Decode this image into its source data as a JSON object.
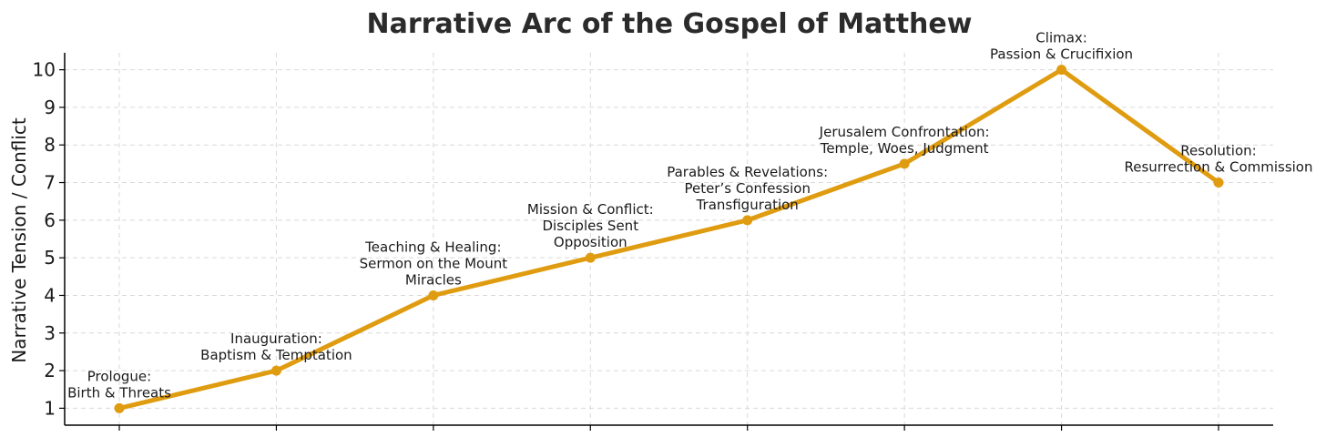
{
  "chart_data": {
    "type": "line",
    "title": "Narrative Arc of the Gospel of Matthew",
    "xlabel": "",
    "ylabel": "Narrative Tension / Conflict",
    "ylim": [
      0.55,
      10.45
    ],
    "yticks": [
      1,
      2,
      3,
      4,
      5,
      6,
      7,
      8,
      9,
      10
    ],
    "grid": true,
    "x": [
      1,
      2,
      3,
      4,
      5,
      6,
      7,
      8
    ],
    "series": [
      {
        "values": [
          1,
          2,
          4,
          5,
          6,
          7.5,
          10,
          7
        ],
        "color": "#e09c10"
      }
    ],
    "annotations": [
      [
        "Prologue:",
        "Birth & Threats"
      ],
      [
        "Inauguration:",
        "Baptism & Temptation"
      ],
      [
        "Teaching & Healing:",
        "Sermon on the Mount",
        "Miracles"
      ],
      [
        "Mission & Conflict:",
        "Disciples Sent",
        "Opposition"
      ],
      [
        "Parables & Revelations:",
        "Peter’s Confession",
        "Transfiguration"
      ],
      [
        "Jerusalem Confrontation:",
        "Temple, Woes, Judgment"
      ],
      [
        "Climax:",
        "Passion & Crucifixion"
      ],
      [
        "Resolution:",
        "Resurrection & Commission"
      ]
    ]
  }
}
